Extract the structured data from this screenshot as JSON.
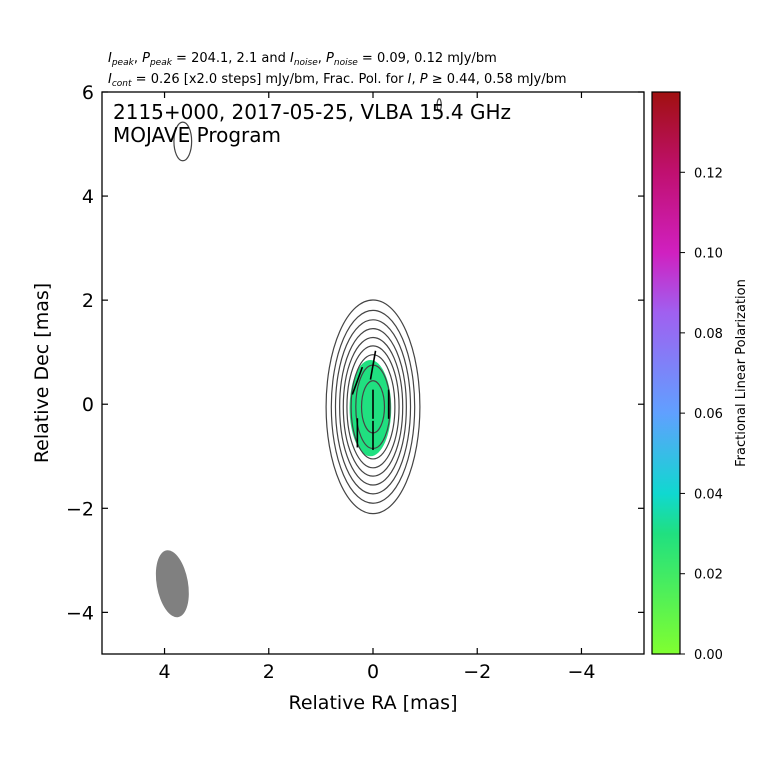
{
  "header": {
    "line1": {
      "i_peak_sym": "I",
      "i_peak_sub": "peak",
      "p_peak_sym": "P",
      "p_peak_sub": "peak",
      "peak_values": " = 204.1, 2.1 and ",
      "i_noise_sym": "I",
      "i_noise_sub": "noise",
      "p_noise_sym": "P",
      "p_noise_sub": "noise",
      "noise_values": " = 0.09, 0.12 mJy/bm"
    },
    "line2": {
      "i_cont_sym": "I",
      "i_cont_sub": "cont",
      "cont_text": " = 0.26 [x2.0 steps] mJy/bm, Frac. Pol. for ",
      "i_sym": "I",
      "p_sym": "P",
      "threshold_text": " ≥ 0.44, 0.58 mJy/bm"
    }
  },
  "plot": {
    "source_line1": "2115+000, 2017-05-25, VLBA 15.4 GHz",
    "source_line2": "MOJAVE Program",
    "beam_color": "#808080",
    "contour_color": "#444444"
  },
  "chart_data": {
    "type": "heatmap",
    "xlabel": "Relative RA [mas]",
    "ylabel": "Relative Dec [mas]",
    "xlim": [
      5.2,
      -5.2
    ],
    "ylim": [
      -4.8,
      6.0
    ],
    "xticks": [
      4,
      2,
      0,
      -2,
      -4
    ],
    "xtick_labels": [
      "4",
      "2",
      "0",
      "−2",
      "−4"
    ],
    "yticks": [
      6,
      4,
      2,
      0,
      -2,
      -4
    ],
    "ytick_labels": [
      "6",
      "4",
      "2",
      "0",
      "−2",
      "−4"
    ],
    "contours": {
      "base_mJy_per_beam": 0.26,
      "step_factor": 2.0,
      "center": [
        0.0,
        -0.05
      ],
      "ellipses_mas": [
        {
          "a": 0.9,
          "b": 2.05
        },
        {
          "a": 0.8,
          "b": 1.85
        },
        {
          "a": 0.72,
          "b": 1.67
        },
        {
          "a": 0.64,
          "b": 1.5
        },
        {
          "a": 0.57,
          "b": 1.33
        },
        {
          "a": 0.5,
          "b": 1.17
        },
        {
          "a": 0.42,
          "b": 1.0
        },
        {
          "a": 0.33,
          "b": 0.8
        },
        {
          "a": 0.22,
          "b": 0.5
        }
      ],
      "extra_blobs": [
        {
          "x": 3.65,
          "y": 5.05,
          "a": 0.17,
          "b": 0.37
        },
        {
          "x": -1.27,
          "y": 5.75,
          "a": 0.04,
          "b": 0.12
        }
      ]
    },
    "frac_pol_region": {
      "center": [
        0.0,
        -0.1
      ],
      "extent_ra": [
        0.45,
        -0.35
      ],
      "extent_dec": [
        -1.0,
        0.85
      ],
      "value": 0.018
    },
    "evpa_vectors": [
      {
        "x": 0.3,
        "y": 0.45,
        "angle_deg": 20
      },
      {
        "x": 0.3,
        "y": -0.55,
        "angle_deg": 0
      },
      {
        "x": 0.0,
        "y": 0.75,
        "angle_deg": 10
      },
      {
        "x": 0.0,
        "y": 0.0,
        "angle_deg": 0
      },
      {
        "x": 0.0,
        "y": -0.6,
        "angle_deg": 0
      },
      {
        "x": -0.3,
        "y": 0.0,
        "angle_deg": 0
      }
    ],
    "beam": {
      "x": 3.85,
      "y": -3.45,
      "bmaj_mas": 1.3,
      "bmin_mas": 0.6,
      "pa_deg": -10
    },
    "colorbar": {
      "label": "Fractional Linear Polarization",
      "range": [
        0.0,
        0.14
      ],
      "ticks": [
        0.0,
        0.02,
        0.04,
        0.06,
        0.08,
        0.1,
        0.12
      ],
      "tick_labels": [
        "0.00",
        "0.02",
        "0.04",
        "0.06",
        "0.08",
        "0.10",
        "0.12"
      ],
      "colormap_stops": [
        {
          "v": 0.0,
          "color": "#80ff30"
        },
        {
          "v": 0.03,
          "color": "#20e080"
        },
        {
          "v": 0.04,
          "color": "#10d8d0"
        },
        {
          "v": 0.06,
          "color": "#60a0ff"
        },
        {
          "v": 0.085,
          "color": "#a060f0"
        },
        {
          "v": 0.1,
          "color": "#d020c0"
        },
        {
          "v": 0.12,
          "color": "#c01070"
        },
        {
          "v": 0.14,
          "color": "#a01010"
        }
      ]
    }
  }
}
